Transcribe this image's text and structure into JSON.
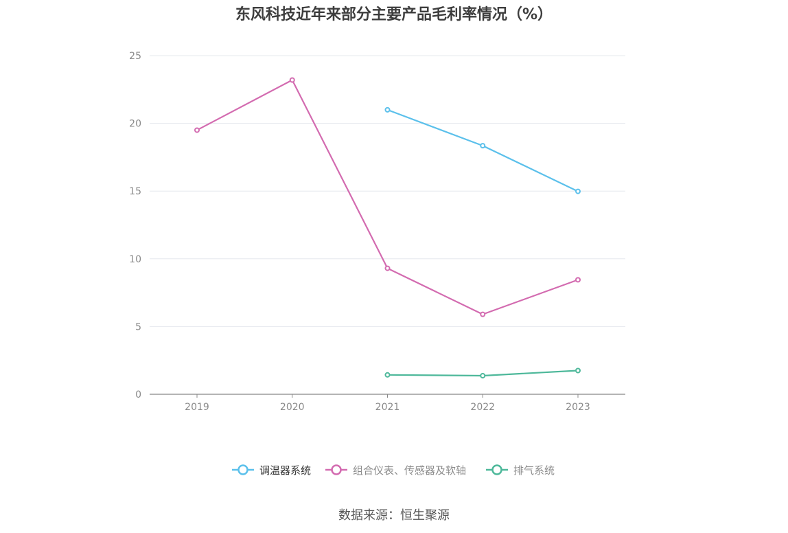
{
  "chart_data": {
    "type": "line",
    "title": "东风科技近年来部分主要产品毛利率情况（%）",
    "xlabel": "",
    "ylabel": "",
    "categories": [
      "2019",
      "2020",
      "2021",
      "2022",
      "2023"
    ],
    "ylim": [
      0,
      25
    ],
    "yticks": [
      0,
      5,
      10,
      15,
      20,
      25
    ],
    "grid": true,
    "legend_position": "bottom",
    "series": [
      {
        "name": "调温器系统",
        "color": "#5bc0eb",
        "values": [
          null,
          null,
          21.0,
          18.35,
          14.98
        ]
      },
      {
        "name": "组合仪表、传感器及软轴",
        "color": "#d36bb0",
        "values": [
          19.5,
          23.2,
          9.3,
          5.9,
          8.45
        ]
      },
      {
        "name": "排气系统",
        "color": "#4db89a",
        "values": [
          null,
          null,
          1.43,
          1.37,
          1.75
        ]
      }
    ]
  },
  "source": "数据来源：恒生聚源"
}
